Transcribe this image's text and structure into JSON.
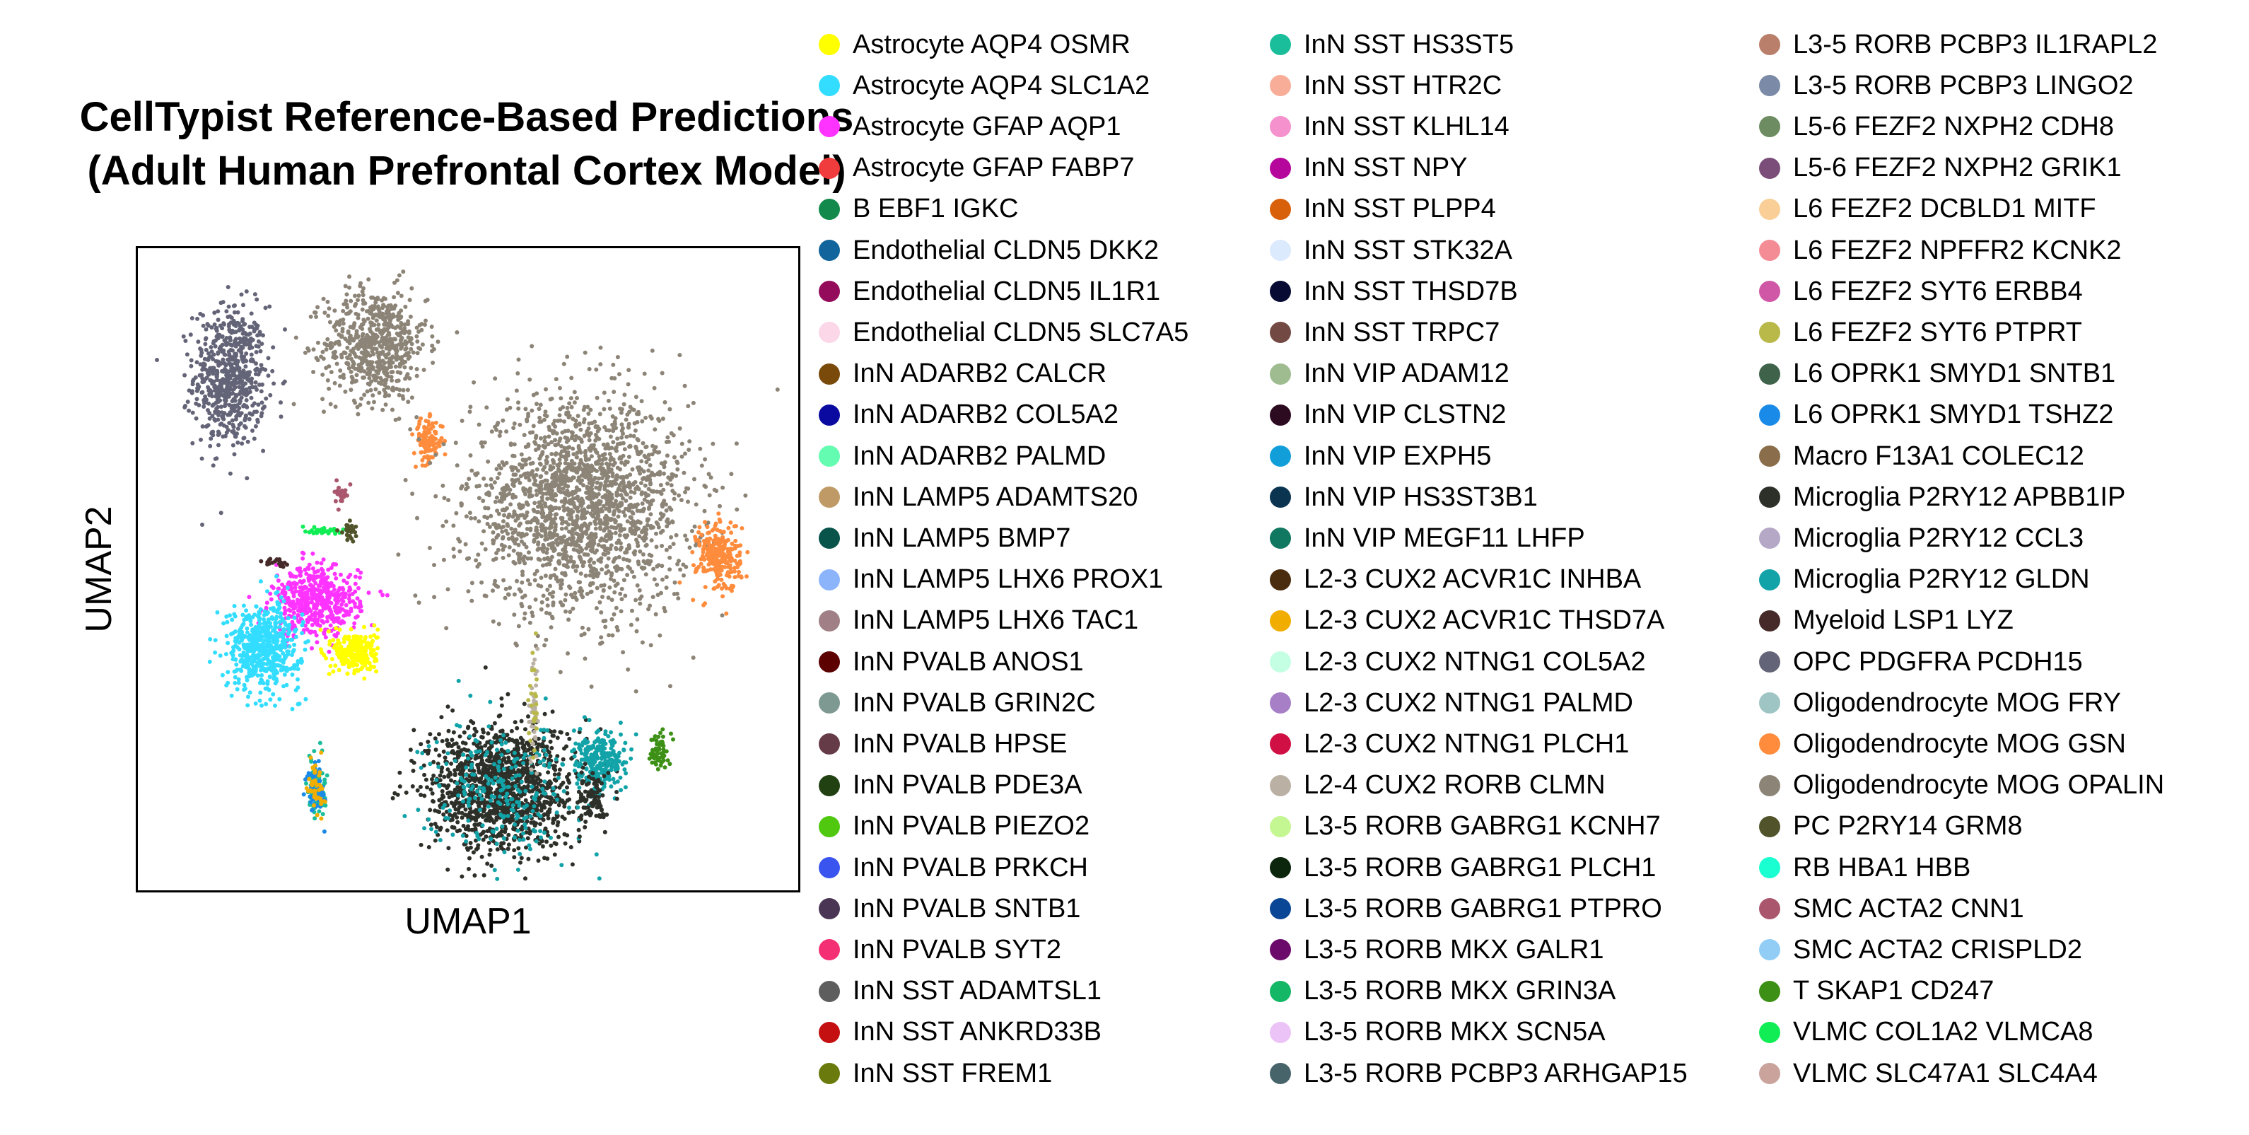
{
  "chart_data": {
    "type": "scatter",
    "title_lines": [
      "CellTypist Reference-Based Predictions",
      "(Adult Human Prefrontal Cortex Model)"
    ],
    "xlabel": "UMAP1",
    "ylabel": "UMAP2",
    "grid": false,
    "ticks": false,
    "legend_placement": "right",
    "clusters": [
      {
        "category": "OPC PDGFRA PCDH15",
        "color": "#646478",
        "center": [
          0.14,
          0.8
        ],
        "spread": [
          0.05,
          0.1
        ],
        "points": 650
      },
      {
        "category": "Oligodendrocyte MOG OPALIN",
        "color": "#8c8477",
        "center": [
          0.36,
          0.85
        ],
        "spread": [
          0.07,
          0.08
        ],
        "points": 650
      },
      {
        "category": "Oligodendrocyte MOG GSN",
        "color": "#ff8c3c",
        "center": [
          0.44,
          0.7
        ],
        "spread": [
          0.02,
          0.03
        ],
        "points": 110
      },
      {
        "category": "Oligodendrocyte MOG OPALIN",
        "color": "#8c8477",
        "center": [
          0.67,
          0.6
        ],
        "spread": [
          0.15,
          0.15
        ],
        "points": 2000
      },
      {
        "category": "Oligodendrocyte MOG GSN",
        "color": "#ff8c3c",
        "center": [
          0.88,
          0.52
        ],
        "spread": [
          0.03,
          0.05
        ],
        "points": 250
      },
      {
        "category": "Astrocyte GFAP AQP1",
        "color": "#ff33ff",
        "center": [
          0.27,
          0.45
        ],
        "spread": [
          0.06,
          0.05
        ],
        "points": 500
      },
      {
        "category": "Astrocyte AQP4 SLC1A2",
        "color": "#33ddff",
        "center": [
          0.19,
          0.38
        ],
        "spread": [
          0.05,
          0.06
        ],
        "points": 550
      },
      {
        "category": "Astrocyte AQP4 OSMR",
        "color": "#ffff00",
        "center": [
          0.33,
          0.37
        ],
        "spread": [
          0.03,
          0.03
        ],
        "points": 260
      },
      {
        "category": "Microglia P2RY12 APBB1IP",
        "color": "#2d3029",
        "center": [
          0.55,
          0.16
        ],
        "spread": [
          0.1,
          0.09
        ],
        "points": 1300
      },
      {
        "category": "Microglia P2RY12 GLDN",
        "color": "#12a3a8",
        "center": [
          0.55,
          0.16
        ],
        "spread": [
          0.1,
          0.09
        ],
        "points": 250
      },
      {
        "category": "Microglia P2RY12 GLDN",
        "color": "#12a3a8",
        "center": [
          0.7,
          0.2
        ],
        "spread": [
          0.035,
          0.04
        ],
        "points": 260
      },
      {
        "category": "Microglia P2RY12 APBB1IP",
        "color": "#2d3029",
        "center": [
          0.69,
          0.14
        ],
        "spread": [
          0.02,
          0.04
        ],
        "points": 90
      },
      {
        "category": "T SKAP1 CD247",
        "color": "#3d9016",
        "center": [
          0.79,
          0.22
        ],
        "spread": [
          0.012,
          0.025
        ],
        "points": 60
      },
      {
        "category": "VLMC COL1A2 VLMCA8",
        "color": "#11ee55",
        "center": [
          0.28,
          0.56
        ],
        "spread": [
          0.02,
          0.006
        ],
        "points": 40
      },
      {
        "category": "PC P2RY14 GRM8",
        "color": "#51542a",
        "center": [
          0.32,
          0.56
        ],
        "spread": [
          0.01,
          0.015
        ],
        "points": 30
      },
      {
        "category": "SMC ACTA2 CNN1",
        "color": "#aa566d",
        "center": [
          0.31,
          0.62
        ],
        "spread": [
          0.012,
          0.015
        ],
        "points": 25
      },
      {
        "category": "Myeloid LSP1 LYZ",
        "color": "#462a2a",
        "center": [
          0.21,
          0.51
        ],
        "spread": [
          0.015,
          0.005
        ],
        "points": 20
      },
      {
        "category": "InN SST HS3ST5",
        "color": "#1bbe9b",
        "center": [
          0.27,
          0.16
        ],
        "spread": [
          0.012,
          0.04
        ],
        "points": 90
      },
      {
        "category": "L6 OPRK1 SMYD1 TSHZ2",
        "color": "#1a8ae8",
        "center": [
          0.27,
          0.16
        ],
        "spread": [
          0.012,
          0.04
        ],
        "points": 60
      },
      {
        "category": "L2-3 CUX2 ACVR1C THSD7A",
        "color": "#f2ae00",
        "center": [
          0.27,
          0.16
        ],
        "spread": [
          0.012,
          0.04
        ],
        "points": 40
      },
      {
        "category": "L2-4 CUX2 RORB CLMN",
        "color": "#bbb0a4",
        "center": [
          0.6,
          0.28
        ],
        "spread": [
          0.006,
          0.08
        ],
        "points": 40
      },
      {
        "category": "L6 FEZF2 SYT6 PTPRT",
        "color": "#b9b94a",
        "center": [
          0.6,
          0.28
        ],
        "spread": [
          0.006,
          0.08
        ],
        "points": 25
      }
    ]
  },
  "legend": {
    "columns": [
      [
        {
          "label": "Astrocyte AQP4 OSMR",
          "color": "#ffff00"
        },
        {
          "label": "Astrocyte AQP4 SLC1A2",
          "color": "#33ddff"
        },
        {
          "label": "Astrocyte GFAP AQP1",
          "color": "#ff33ff"
        },
        {
          "label": "Astrocyte GFAP FABP7",
          "color": "#f03c3c"
        },
        {
          "label": "B EBF1 IGKC",
          "color": "#138a4b"
        },
        {
          "label": "Endothelial CLDN5 DKK2",
          "color": "#11649c"
        },
        {
          "label": "Endothelial CLDN5 IL1R1",
          "color": "#940b5c"
        },
        {
          "label": "Endothelial CLDN5 SLC7A5",
          "color": "#fbd7e8"
        },
        {
          "label": "InN ADARB2 CALCR",
          "color": "#7a4a0a"
        },
        {
          "label": "InN ADARB2 COL5A2",
          "color": "#0a0aa0"
        },
        {
          "label": "InN ADARB2 PALMD",
          "color": "#63fcb0"
        },
        {
          "label": "InN LAMP5 ADAMTS20",
          "color": "#bf9a66"
        },
        {
          "label": "InN LAMP5 BMP7",
          "color": "#08544a"
        },
        {
          "label": "InN LAMP5 LHX6 PROX1",
          "color": "#8cb4fa"
        },
        {
          "label": "InN LAMP5 LHX6 TAC1",
          "color": "#a08086"
        },
        {
          "label": "InN PVALB ANOS1",
          "color": "#5c0000"
        },
        {
          "label": "InN PVALB GRIN2C",
          "color": "#7e9892"
        },
        {
          "label": "InN PVALB HPSE",
          "color": "#663b48"
        },
        {
          "label": "InN PVALB PDE3A",
          "color": "#214112"
        },
        {
          "label": "InN PVALB PIEZO2",
          "color": "#4fc80f"
        },
        {
          "label": "InN PVALB PRKCH",
          "color": "#3a55ef"
        },
        {
          "label": "InN PVALB SNTB1",
          "color": "#4a3654"
        },
        {
          "label": "InN PVALB SYT2",
          "color": "#f42f74"
        },
        {
          "label": "InN SST ADAMTSL1",
          "color": "#5e5e5e"
        },
        {
          "label": "InN SST ANKRD33B",
          "color": "#c41010"
        },
        {
          "label": "InN SST FREM1",
          "color": "#6b7a0c"
        }
      ],
      [
        {
          "label": "InN SST HS3ST5",
          "color": "#1bbe9b"
        },
        {
          "label": "InN SST HTR2C",
          "color": "#f8ad98"
        },
        {
          "label": "InN SST KLHL14",
          "color": "#f591cd"
        },
        {
          "label": "InN SST NPY",
          "color": "#b5079c"
        },
        {
          "label": "InN SST PLPP4",
          "color": "#d8600a"
        },
        {
          "label": "InN SST STK32A",
          "color": "#dceafd"
        },
        {
          "label": "InN SST THSD7B",
          "color": "#070a33"
        },
        {
          "label": "InN SST TRPC7",
          "color": "#734943"
        },
        {
          "label": "InN VIP ADAM12",
          "color": "#9ebc8f"
        },
        {
          "label": "InN VIP CLSTN2",
          "color": "#2c0a1f"
        },
        {
          "label": "InN VIP EXPH5",
          "color": "#129fd9"
        },
        {
          "label": "InN VIP HS3ST3B1",
          "color": "#0b3450"
        },
        {
          "label": "InN VIP MEGF11 LHFP",
          "color": "#107860"
        },
        {
          "label": "L2-3 CUX2 ACVR1C INHBA",
          "color": "#4a2c0e"
        },
        {
          "label": "L2-3 CUX2 ACVR1C THSD7A",
          "color": "#f2ae00"
        },
        {
          "label": "L2-3 CUX2 NTNG1 COL5A2",
          "color": "#c4ffe4"
        },
        {
          "label": "L2-3 CUX2 NTNG1 PALMD",
          "color": "#a67fc7"
        },
        {
          "label": "L2-3 CUX2 NTNG1 PLCH1",
          "color": "#d00f45"
        },
        {
          "label": "L2-4 CUX2 RORB CLMN",
          "color": "#bbb0a4"
        },
        {
          "label": "L3-5 RORB GABRG1 KCNH7",
          "color": "#c4f791"
        },
        {
          "label": "L3-5 RORB GABRG1 PLCH1",
          "color": "#0c260d"
        },
        {
          "label": "L3-5 RORB GABRG1 PTPRO",
          "color": "#0a4696"
        },
        {
          "label": "L3-5 RORB MKX GALR1",
          "color": "#6b0a6a"
        },
        {
          "label": "L3-5 RORB MKX GRIN3A",
          "color": "#14b765"
        },
        {
          "label": "L3-5 RORB MKX SCN5A",
          "color": "#ebc3f7"
        },
        {
          "label": "L3-5 RORB PCBP3 ARHGAP15",
          "color": "#47646b"
        }
      ],
      [
        {
          "label": "L3-5 RORB PCBP3 IL1RAPL2",
          "color": "#b97f6a"
        },
        {
          "label": "L3-5 RORB PCBP3 LINGO2",
          "color": "#7b8aa6"
        },
        {
          "label": "L5-6 FEZF2 NXPH2 CDH8",
          "color": "#6e8c62"
        },
        {
          "label": "L5-6 FEZF2 NXPH2 GRIK1",
          "color": "#7b4e7a"
        },
        {
          "label": "L6 FEZF2 DCBLD1 MITF",
          "color": "#f9cf97"
        },
        {
          "label": "L6 FEZF2 NPFFR2 KCNK2",
          "color": "#f48c96"
        },
        {
          "label": "L6 FEZF2 SYT6 ERBB4",
          "color": "#d057a6"
        },
        {
          "label": "L6 FEZF2 SYT6 PTPRT",
          "color": "#b9b94a"
        },
        {
          "label": "L6 OPRK1 SMYD1 SNTB1",
          "color": "#3f624a"
        },
        {
          "label": "L6 OPRK1 SMYD1 TSHZ2",
          "color": "#1a8ae8"
        },
        {
          "label": "Macro F13A1 COLEC12",
          "color": "#8a6d4a"
        },
        {
          "label": "Microglia P2RY12 APBB1IP",
          "color": "#2d3029"
        },
        {
          "label": "Microglia P2RY12 CCL3",
          "color": "#b4a8c6"
        },
        {
          "label": "Microglia P2RY12 GLDN",
          "color": "#12a3a8"
        },
        {
          "label": "Myeloid LSP1 LYZ",
          "color": "#462a2a"
        },
        {
          "label": "OPC PDGFRA PCDH15",
          "color": "#646478"
        },
        {
          "label": "Oligodendrocyte MOG FRY",
          "color": "#9fc4c4"
        },
        {
          "label": "Oligodendrocyte MOG GSN",
          "color": "#ff8c3c"
        },
        {
          "label": "Oligodendrocyte MOG OPALIN",
          "color": "#8c8477"
        },
        {
          "label": "PC P2RY14 GRM8",
          "color": "#51542a"
        },
        {
          "label": "RB HBA1 HBB",
          "color": "#1affd2"
        },
        {
          "label": "SMC ACTA2 CNN1",
          "color": "#aa566d"
        },
        {
          "label": "SMC ACTA2 CRISPLD2",
          "color": "#91cdf5"
        },
        {
          "label": "T SKAP1 CD247",
          "color": "#3d9016"
        },
        {
          "label": "VLMC COL1A2 VLMCA8",
          "color": "#11ee55"
        },
        {
          "label": "VLMC SLC47A1 SLC4A4",
          "color": "#caa39d"
        }
      ]
    ]
  }
}
